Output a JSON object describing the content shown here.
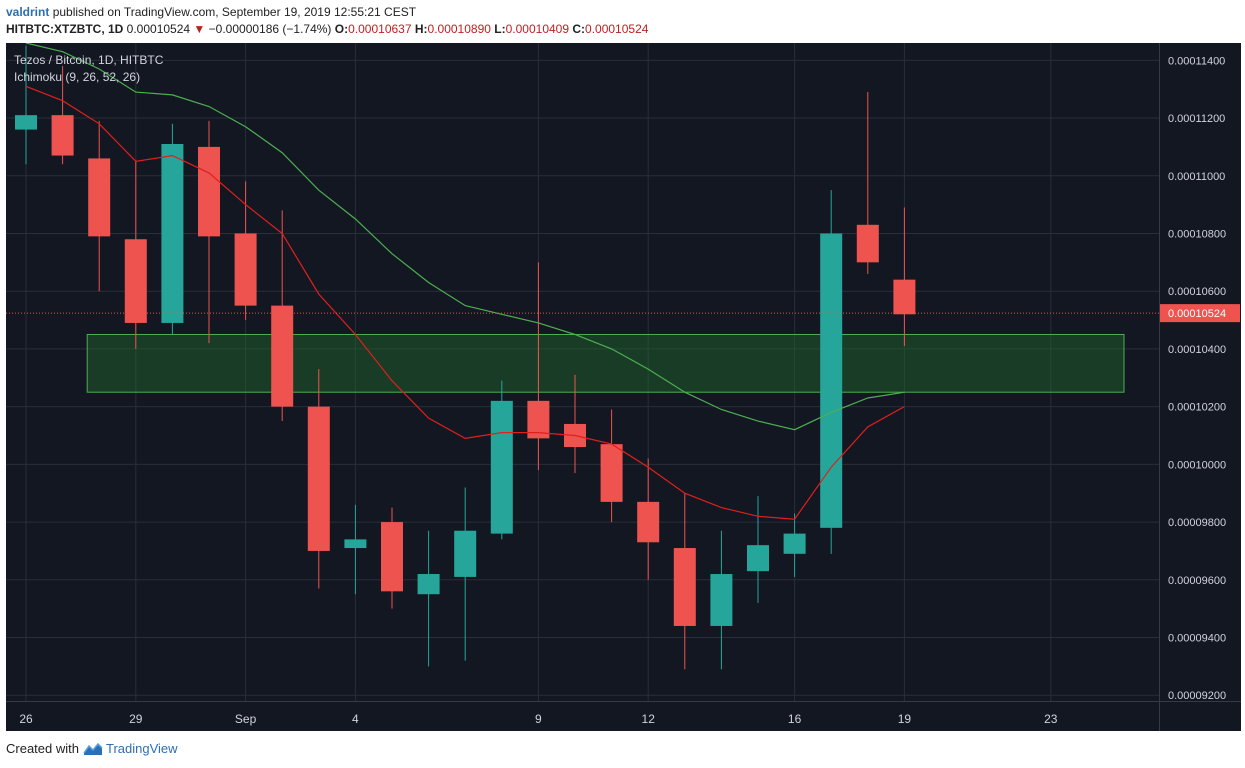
{
  "header": {
    "user": "valdrint",
    "published": "published on TradingView.com, September 19, 2019 12:55:21 CEST"
  },
  "quote": {
    "symbol": "HITBTC:XTZBTC, 1D",
    "last": "0.00010524",
    "change_arrow": "▼",
    "change": "−0.00000186 (−1.74%)",
    "o_label": "O:",
    "o": "0.00010637",
    "h_label": "H:",
    "h": "0.00010890",
    "l_label": "L:",
    "l": "0.00010409",
    "c_label": "C:",
    "c": "0.00010524"
  },
  "footer": {
    "created_with": "Created with",
    "brand": "TradingView"
  },
  "colors": {
    "background": "#131722",
    "grid": "#2a2e39",
    "up": "#26a69a",
    "down": "#ef5350",
    "tenkan": "#e0201c",
    "kijun": "#4caf50",
    "zone": "#1b5e20",
    "price_tag": "#ef5350"
  },
  "chart_data": {
    "type": "candlestick",
    "title": "Tezos / Bitcoin, 1D, HITBTC",
    "indicator": "Ichimoku (9, 26, 52, 26)",
    "ylim": [
      9.18e-05,
      0.0001146
    ],
    "y_ticks": [
      "0.00009200",
      "0.00009400",
      "0.00009600",
      "0.00009800",
      "0.00010000",
      "0.00010200",
      "0.00010400",
      "0.00010600",
      "0.00010800",
      "0.00011000",
      "0.00011200",
      "0.00011400"
    ],
    "x_ticks": [
      {
        "label": "26",
        "date": "2019-08-26"
      },
      {
        "label": "29",
        "date": "2019-08-29"
      },
      {
        "label": "Sep",
        "date": "2019-09-01"
      },
      {
        "label": "4",
        "date": "2019-09-04"
      },
      {
        "label": "9",
        "date": "2019-09-09"
      },
      {
        "label": "12",
        "date": "2019-09-12"
      },
      {
        "label": "16",
        "date": "2019-09-16"
      },
      {
        "label": "19",
        "date": "2019-09-19"
      },
      {
        "label": "23",
        "date": "2019-09-23"
      }
    ],
    "last_price_label": "0.00010524",
    "last_price": 0.00010524,
    "candles": [
      {
        "date": "2019-08-26",
        "o": 0.0001116,
        "h": 0.0001145,
        "l": 0.0001104,
        "c": 0.0001121
      },
      {
        "date": "2019-08-27",
        "o": 0.0001121,
        "h": 0.0001138,
        "l": 0.0001104,
        "c": 0.0001107
      },
      {
        "date": "2019-08-28",
        "o": 0.0001106,
        "h": 0.0001119,
        "l": 0.000106,
        "c": 0.0001079
      },
      {
        "date": "2019-08-29",
        "o": 0.0001078,
        "h": 0.0001105,
        "l": 0.000104,
        "c": 0.0001049
      },
      {
        "date": "2019-08-30",
        "o": 0.0001049,
        "h": 0.0001118,
        "l": 0.0001045,
        "c": 0.0001111
      },
      {
        "date": "2019-08-31",
        "o": 0.000111,
        "h": 0.0001119,
        "l": 0.0001042,
        "c": 0.0001079
      },
      {
        "date": "2019-09-01",
        "o": 0.000108,
        "h": 0.0001098,
        "l": 0.000105,
        "c": 0.0001055
      },
      {
        "date": "2019-09-02",
        "o": 0.0001055,
        "h": 0.0001088,
        "l": 0.0001015,
        "c": 0.000102
      },
      {
        "date": "2019-09-03",
        "o": 0.000102,
        "h": 0.0001033,
        "l": 9.57e-05,
        "c": 9.7e-05
      },
      {
        "date": "2019-09-04",
        "o": 9.71e-05,
        "h": 9.86e-05,
        "l": 9.55e-05,
        "c": 9.74e-05
      },
      {
        "date": "2019-09-05",
        "o": 9.8e-05,
        "h": 9.85e-05,
        "l": 9.5e-05,
        "c": 9.56e-05
      },
      {
        "date": "2019-09-06",
        "o": 9.55e-05,
        "h": 9.77e-05,
        "l": 9.3e-05,
        "c": 9.62e-05
      },
      {
        "date": "2019-09-07",
        "o": 9.61e-05,
        "h": 9.92e-05,
        "l": 9.32e-05,
        "c": 9.77e-05
      },
      {
        "date": "2019-09-08",
        "o": 9.76e-05,
        "h": 0.0001029,
        "l": 9.74e-05,
        "c": 0.0001022
      },
      {
        "date": "2019-09-09",
        "o": 0.0001022,
        "h": 0.000107,
        "l": 9.98e-05,
        "c": 0.0001009
      },
      {
        "date": "2019-09-10",
        "o": 0.0001014,
        "h": 0.0001031,
        "l": 9.97e-05,
        "c": 0.0001006
      },
      {
        "date": "2019-09-11",
        "o": 0.0001007,
        "h": 0.0001019,
        "l": 9.8e-05,
        "c": 9.87e-05
      },
      {
        "date": "2019-09-12",
        "o": 9.87e-05,
        "h": 0.0001002,
        "l": 9.6e-05,
        "c": 9.73e-05
      },
      {
        "date": "2019-09-13",
        "o": 9.71e-05,
        "h": 9.9e-05,
        "l": 9.29e-05,
        "c": 9.44e-05
      },
      {
        "date": "2019-09-14",
        "o": 9.44e-05,
        "h": 9.77e-05,
        "l": 9.29e-05,
        "c": 9.62e-05
      },
      {
        "date": "2019-09-15",
        "o": 9.63e-05,
        "h": 9.89e-05,
        "l": 9.52e-05,
        "c": 9.72e-05
      },
      {
        "date": "2019-09-16",
        "o": 9.69e-05,
        "h": 9.83e-05,
        "l": 9.61e-05,
        "c": 9.76e-05
      },
      {
        "date": "2019-09-17",
        "o": 9.78e-05,
        "h": 0.0001095,
        "l": 9.69e-05,
        "c": 0.000108
      },
      {
        "date": "2019-09-18",
        "o": 0.0001083,
        "h": 0.0001129,
        "l": 0.0001066,
        "c": 0.000107
      },
      {
        "date": "2019-09-19",
        "o": 0.0001064,
        "h": 0.0001089,
        "l": 0.0001041,
        "c": 0.0001052
      }
    ],
    "tenkan_sen": [
      {
        "date": "2019-08-26",
        "v": 0.0001131
      },
      {
        "date": "2019-08-27",
        "v": 0.0001126
      },
      {
        "date": "2019-08-28",
        "v": 0.0001118
      },
      {
        "date": "2019-08-29",
        "v": 0.0001105
      },
      {
        "date": "2019-08-30",
        "v": 0.0001107
      },
      {
        "date": "2019-08-31",
        "v": 0.0001101
      },
      {
        "date": "2019-09-01",
        "v": 0.000109
      },
      {
        "date": "2019-09-02",
        "v": 0.000108
      },
      {
        "date": "2019-09-03",
        "v": 0.0001059
      },
      {
        "date": "2019-09-04",
        "v": 0.0001045
      },
      {
        "date": "2019-09-05",
        "v": 0.0001029
      },
      {
        "date": "2019-09-06",
        "v": 0.0001016
      },
      {
        "date": "2019-09-07",
        "v": 0.0001009
      },
      {
        "date": "2019-09-08",
        "v": 0.0001011
      },
      {
        "date": "2019-09-09",
        "v": 0.0001011
      },
      {
        "date": "2019-09-10",
        "v": 0.000101
      },
      {
        "date": "2019-09-11",
        "v": 0.0001007
      },
      {
        "date": "2019-09-12",
        "v": 9.99e-05
      },
      {
        "date": "2019-09-13",
        "v": 9.9e-05
      },
      {
        "date": "2019-09-14",
        "v": 9.85e-05
      },
      {
        "date": "2019-09-15",
        "v": 9.82e-05
      },
      {
        "date": "2019-09-16",
        "v": 9.81e-05
      },
      {
        "date": "2019-09-17",
        "v": 9.99e-05
      },
      {
        "date": "2019-09-18",
        "v": 0.0001013
      },
      {
        "date": "2019-09-19",
        "v": 0.000102
      }
    ],
    "kijun_sen": [
      {
        "date": "2019-08-26",
        "v": 0.0001146
      },
      {
        "date": "2019-08-27",
        "v": 0.0001143
      },
      {
        "date": "2019-08-28",
        "v": 0.0001137
      },
      {
        "date": "2019-08-29",
        "v": 0.0001129
      },
      {
        "date": "2019-08-30",
        "v": 0.0001128
      },
      {
        "date": "2019-08-31",
        "v": 0.0001124
      },
      {
        "date": "2019-09-01",
        "v": 0.0001117
      },
      {
        "date": "2019-09-02",
        "v": 0.0001108
      },
      {
        "date": "2019-09-03",
        "v": 0.0001095
      },
      {
        "date": "2019-09-04",
        "v": 0.0001085
      },
      {
        "date": "2019-09-05",
        "v": 0.0001073
      },
      {
        "date": "2019-09-06",
        "v": 0.0001063
      },
      {
        "date": "2019-09-07",
        "v": 0.0001055
      },
      {
        "date": "2019-09-08",
        "v": 0.0001052
      },
      {
        "date": "2019-09-09",
        "v": 0.0001049
      },
      {
        "date": "2019-09-10",
        "v": 0.0001045
      },
      {
        "date": "2019-09-11",
        "v": 0.000104
      },
      {
        "date": "2019-09-12",
        "v": 0.0001033
      },
      {
        "date": "2019-09-13",
        "v": 0.0001025
      },
      {
        "date": "2019-09-14",
        "v": 0.0001019
      },
      {
        "date": "2019-09-15",
        "v": 0.0001015
      },
      {
        "date": "2019-09-16",
        "v": 0.0001012
      },
      {
        "date": "2019-09-17",
        "v": 0.0001018
      },
      {
        "date": "2019-09-18",
        "v": 0.0001023
      },
      {
        "date": "2019-09-19",
        "v": 0.0001025
      }
    ],
    "support_zone": {
      "start": "2019-08-28",
      "end": "2019-09-25",
      "low": 0.0001025,
      "high": 0.0001045
    }
  }
}
